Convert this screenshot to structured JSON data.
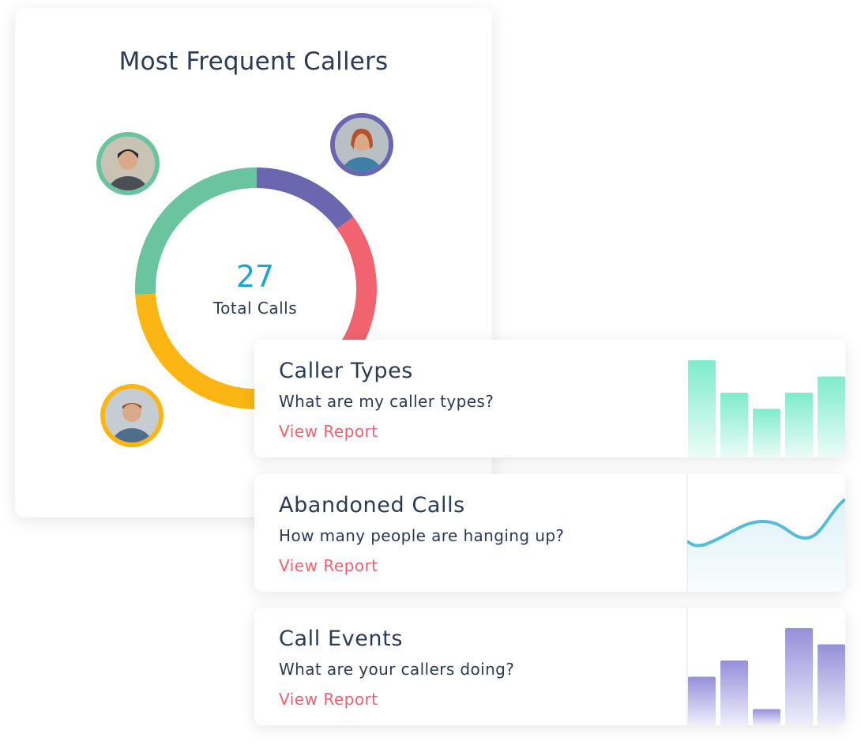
{
  "main_card": {
    "title": "Most Frequent Callers",
    "total": "27",
    "total_label": "Total Calls",
    "segments": [
      {
        "color": "#6bc4a0",
        "value": 7
      },
      {
        "color": "#6b66b0",
        "value": 4
      },
      {
        "color": "#f0636f",
        "value": 9
      },
      {
        "color": "#fbb614",
        "value": 7
      }
    ],
    "avatars": [
      {
        "ring": "#6bc4a0"
      },
      {
        "ring": "#6b66b0"
      },
      {
        "ring": "#fbb614"
      }
    ]
  },
  "reports": [
    {
      "title": "Caller Types",
      "question": "What are my caller types?",
      "link": "View Report",
      "chart": {
        "type": "bar",
        "values": [
          6,
          4,
          3,
          4,
          5
        ],
        "color": "#7eeccb"
      }
    },
    {
      "title": "Abandoned Calls",
      "question": "How many people are hanging up?",
      "link": "View Report",
      "chart": {
        "type": "area",
        "values": [
          2.3,
          2.0,
          3.5,
          2.5,
          5.0
        ],
        "color": "#56bdd9"
      }
    },
    {
      "title": "Call Events",
      "question": "What are your callers doing?",
      "link": "View Report",
      "chart": {
        "type": "bar",
        "values": [
          3,
          4,
          1,
          6,
          5
        ],
        "color": "#958fd9"
      }
    }
  ]
}
